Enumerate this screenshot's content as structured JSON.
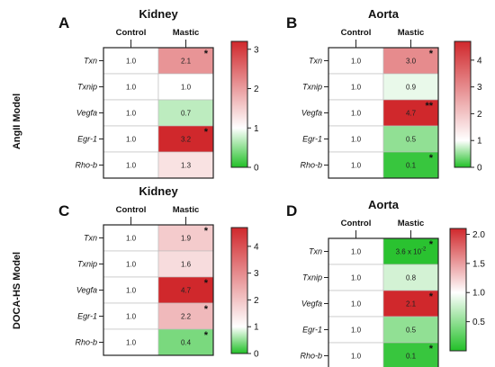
{
  "models": [
    {
      "label": "AngII Model",
      "panels": [
        0,
        1
      ]
    },
    {
      "label": "DOCA-HS  Model",
      "panels": [
        2,
        3
      ]
    }
  ],
  "chart_data": [
    {
      "type": "heatmap",
      "letter": "A",
      "title": "Kidney",
      "columns": [
        "Control",
        "Mastic"
      ],
      "rows": [
        "Txn",
        "Txnip",
        "Vegfa",
        "Egr-1",
        "Rho-b"
      ],
      "control": [
        "1.0",
        "1.0",
        "1.0",
        "1.0",
        "1.0"
      ],
      "mastic": [
        "2.1",
        "1.0",
        "0.7",
        "3.2",
        "1.3"
      ],
      "values": [
        2.1,
        1.0,
        0.7,
        3.2,
        1.3
      ],
      "stars": [
        "*",
        "",
        "",
        "*",
        ""
      ],
      "scale": {
        "min": 0,
        "mid": 1,
        "max": 3.2
      },
      "ticks": [
        "0",
        "1",
        "2",
        "3"
      ]
    },
    {
      "type": "heatmap",
      "letter": "B",
      "title": "Aorta",
      "columns": [
        "Control",
        "Mastic"
      ],
      "rows": [
        "Txn",
        "Txnip",
        "Vegfa",
        "Egr-1",
        "Rho-b"
      ],
      "control": [
        "1.0",
        "1.0",
        "1.0",
        "1.0",
        "1.0"
      ],
      "mastic": [
        "3.0",
        "0.9",
        "4.7",
        "0.5",
        "0.1"
      ],
      "values": [
        3.0,
        0.9,
        4.7,
        0.5,
        0.1
      ],
      "stars": [
        "*",
        "",
        "**",
        "",
        "*"
      ],
      "scale": {
        "min": 0,
        "mid": 1,
        "max": 4.7
      },
      "ticks": [
        "0",
        "1",
        "2",
        "3",
        "4"
      ]
    },
    {
      "type": "heatmap",
      "letter": "C",
      "title": "Kidney",
      "columns": [
        "Control",
        "Mastic"
      ],
      "rows": [
        "Txn",
        "Txnip",
        "Vegfa",
        "Egr-1",
        "Rho-b"
      ],
      "control": [
        "1.0",
        "1.0",
        "1.0",
        "1.0",
        "1.0"
      ],
      "mastic": [
        "1.9",
        "1.6",
        "4.7",
        "2.2",
        "0.4"
      ],
      "values": [
        1.9,
        1.6,
        4.7,
        2.2,
        0.4
      ],
      "stars": [
        "*",
        "",
        "*",
        "*",
        "*"
      ],
      "scale": {
        "min": 0,
        "mid": 1,
        "max": 4.7
      },
      "ticks": [
        "0",
        "1",
        "2",
        "3",
        "4"
      ]
    },
    {
      "type": "heatmap",
      "letter": "D",
      "title": "Aorta",
      "columns": [
        "Control",
        "Mastic"
      ],
      "rows": [
        "Txn",
        "Txnip",
        "Vegfa",
        "Egr-1",
        "Rho-b"
      ],
      "control": [
        "1.0",
        "1.0",
        "1.0",
        "1.0",
        "1.0"
      ],
      "mastic": [
        "3.6 x 10",
        "0.8",
        "2.1",
        "0.5",
        "0.1"
      ],
      "mastic_sup": [
        "-2",
        "",
        "",
        "",
        ""
      ],
      "values": [
        0.036,
        0.8,
        2.1,
        0.5,
        0.1
      ],
      "stars": [
        "*",
        "",
        "*",
        "",
        "*"
      ],
      "scale": {
        "min": 0,
        "mid": 1,
        "max": 2.1
      },
      "ticks": [
        "0.5",
        "1.0",
        "1.5",
        "2.0"
      ],
      "tick_values": [
        0.5,
        1.0,
        1.5,
        2.0
      ]
    }
  ],
  "colors": {
    "low": "#22c028",
    "mid": "#ffffff",
    "high": "#d0282c",
    "border": "#222222"
  }
}
